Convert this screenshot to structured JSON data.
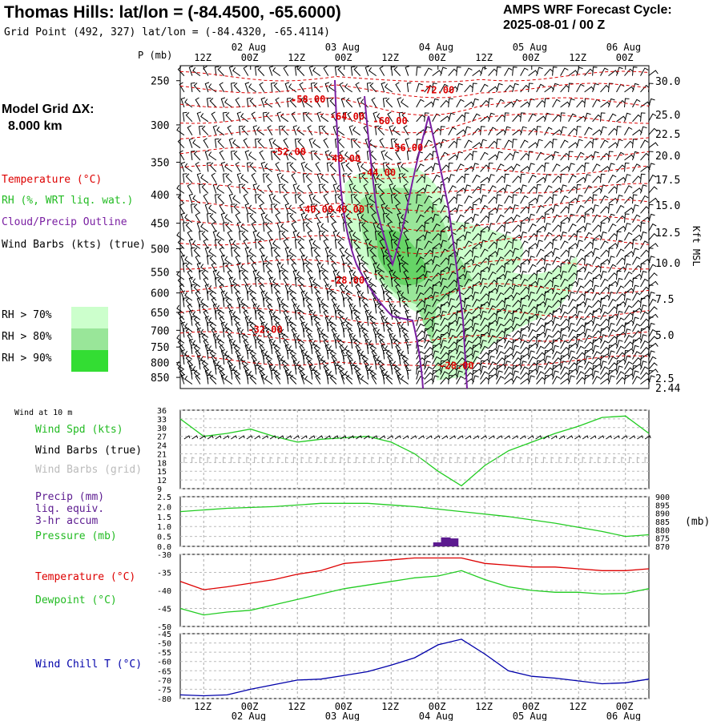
{
  "header": {
    "title": "Thomas Hills:  lat/lon = (-84.4500, -65.6000)",
    "grid_point": "Grid Point (492, 327) lat/lon = (-84.4320, -65.4114)",
    "cycle_line1": "AMPS WRF Forecast Cycle:",
    "cycle_line2": "2025-08-01 / 00  Z"
  },
  "left_panel": {
    "model_grid_line1": "Model Grid ΔX:",
    "model_grid_line2": "8.000 km",
    "temperature_label": "Temperature (°C)",
    "rh_label": "RH (%, WRT liq. wat.)",
    "cloud_label": "Cloud/Precip Outline",
    "wind_label": "Wind Barbs (kts) (true)",
    "rh70": "RH > 70%",
    "rh80": "RH > 80%",
    "rh90": "RH > 90%",
    "p_unit": "P (mb)",
    "kft_label": "Kft MSL",
    "wind10m": "Wind at 10 m",
    "wind_spd": "Wind Spd (kts)",
    "wind_barbs_true": "Wind Barbs (true)",
    "wind_barbs_grid": "Wind Barbs (grid)",
    "precip1": "Precip (mm)",
    "precip2": "liq. equiv.",
    "precip3": "3-hr accum",
    "pressure": "Pressure (mb)",
    "pressure_unit": "(mb)",
    "temp2": "Temperature (°C)",
    "dewpoint": "Dewpoint (°C)",
    "windchill": "Wind Chill T (°C)"
  },
  "colors": {
    "temperature": "#dd0000",
    "rh70": "#ccffcc",
    "rh80": "#99e699",
    "rh90": "#33dd33",
    "cloud": "#7a1fa2",
    "wind_spd": "#22cc22",
    "grid_barbs": "#b0b0b0",
    "precip": "#5b1a8f",
    "pressure": "#22cc22",
    "dewpoint": "#22cc22",
    "windchill": "#0000aa"
  },
  "time_axis": {
    "top_ticks": [
      "12Z",
      "00Z",
      "12Z",
      "00Z",
      "12Z",
      "00Z",
      "12Z",
      "00Z",
      "12Z",
      "00Z"
    ],
    "date_labels": [
      "02 Aug",
      "03 Aug",
      "04 Aug",
      "05 Aug",
      "06 Aug"
    ],
    "range_hours": [
      0,
      120
    ]
  },
  "chart_data": [
    {
      "type": "line",
      "id": "cross_section",
      "description_axis": "pressure",
      "yticks": [
        "250",
        "300",
        "350",
        "400",
        "450",
        "500",
        "550",
        "600",
        "650",
        "700",
        "750",
        "800",
        "850"
      ],
      "ylim": [
        890,
        235
      ],
      "right_ticks": [
        "30.0",
        "25.0",
        "22.5",
        "20.0",
        "17.5",
        "15.0",
        "12.5",
        "10.0",
        "7.5",
        "5.0",
        "2.5",
        "2.44"
      ],
      "temp_labels": [
        {
          "text": "-58.00",
          "t": 32,
          "p": 270
        },
        {
          "text": "-64.00",
          "t": 42,
          "p": 290
        },
        {
          "text": "-60.00",
          "t": 53,
          "p": 295
        },
        {
          "text": "-72.00",
          "t": 65,
          "p": 260
        },
        {
          "text": "-56.00",
          "t": 57,
          "p": 330
        },
        {
          "text": "-52.00",
          "t": 27,
          "p": 335
        },
        {
          "text": "-48.00",
          "t": 41,
          "p": 345
        },
        {
          "text": "-44.00",
          "t": 50,
          "p": 365
        },
        {
          "text": "-40.00",
          "t": 34,
          "p": 425
        },
        {
          "text": "-40.00",
          "t": 42,
          "p": 425
        },
        {
          "text": "-28.00",
          "t": 42,
          "p": 570
        },
        {
          "text": "-32.00",
          "t": 21,
          "p": 698
        },
        {
          "text": "-28.00",
          "t": 70,
          "p": 810
        }
      ]
    },
    {
      "type": "line",
      "id": "wind_speed",
      "yticks": [
        "36",
        "33",
        "30",
        "27",
        "24",
        "21",
        "18",
        "15",
        "12",
        "9"
      ],
      "ylim": [
        9,
        36
      ],
      "x": [
        0,
        6,
        12,
        18,
        24,
        30,
        36,
        42,
        48,
        54,
        60,
        66,
        72,
        78,
        84,
        90,
        96,
        102,
        108,
        114,
        120
      ],
      "values": [
        33,
        27,
        28,
        29.5,
        27,
        25,
        26,
        26.5,
        27,
        25,
        21,
        15,
        10,
        17,
        22,
        25,
        28,
        30.5,
        33.5,
        34,
        28
      ]
    },
    {
      "type": "bar",
      "id": "precip_pressure",
      "yticks": [
        "2.5",
        "2.0",
        "1.5",
        "1.0",
        "0.5",
        "0.0"
      ],
      "ylim": [
        0,
        2.5
      ],
      "right_ticks": [
        "900",
        "895",
        "890",
        "885",
        "880",
        "875",
        "870"
      ],
      "right_ylim": [
        870,
        900
      ],
      "precip": [
        {
          "t": 66,
          "v": 0.2
        },
        {
          "t": 68,
          "v": 0.45
        },
        {
          "t": 70,
          "v": 0.4
        }
      ],
      "pressure_x": [
        0,
        12,
        24,
        36,
        48,
        60,
        72,
        84,
        96,
        108,
        114,
        120
      ],
      "pressure_values": [
        891,
        893,
        894,
        896,
        896,
        894,
        891,
        888,
        884,
        879,
        876,
        877
      ]
    },
    {
      "type": "line",
      "id": "temp_dewpoint",
      "yticks": [
        "-30",
        "-35",
        "-40",
        "-45",
        "-50"
      ],
      "ylim": [
        -50,
        -30
      ],
      "x": [
        0,
        6,
        12,
        18,
        24,
        30,
        36,
        42,
        48,
        54,
        60,
        66,
        72,
        78,
        84,
        90,
        96,
        102,
        108,
        114,
        120
      ],
      "series": [
        {
          "name": "Temperature",
          "values": [
            -37.5,
            -39.8,
            -39,
            -38,
            -37,
            -35.5,
            -34.5,
            -32.5,
            -32,
            -31.5,
            -31,
            -31,
            -31,
            -32.5,
            -33,
            -33.5,
            -33.5,
            -34,
            -34.5,
            -34.5,
            -34
          ]
        },
        {
          "name": "Dewpoint",
          "values": [
            -45,
            -46.8,
            -46,
            -45.5,
            -44,
            -42.5,
            -41,
            -39.5,
            -38.5,
            -37.5,
            -36.5,
            -36,
            -34.5,
            -37,
            -39,
            -40,
            -40.5,
            -40.5,
            -41,
            -40.8,
            -39.5
          ]
        }
      ]
    },
    {
      "type": "line",
      "id": "wind_chill",
      "yticks": [
        "-45",
        "-50",
        "-55",
        "-60",
        "-65",
        "-70",
        "-75",
        "-80"
      ],
      "ylim": [
        -80,
        -45
      ],
      "x": [
        0,
        6,
        12,
        18,
        24,
        30,
        36,
        42,
        48,
        54,
        60,
        66,
        72,
        78,
        84,
        90,
        96,
        102,
        108,
        114,
        120
      ],
      "values": [
        -78,
        -78.5,
        -78,
        -75,
        -72.5,
        -70,
        -69.5,
        -67.5,
        -65.5,
        -62,
        -58,
        -51,
        -48,
        -56,
        -65,
        -68,
        -69,
        -70.5,
        -72,
        -71.5,
        -69.5
      ]
    }
  ]
}
